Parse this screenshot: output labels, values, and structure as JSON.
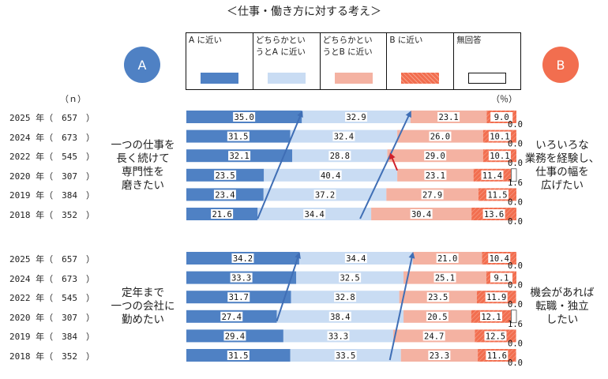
{
  "title": "＜仕事・働き方に対する考え＞",
  "circle_a": "A",
  "circle_b": "B",
  "unit_n": "（ｎ）",
  "unit_pct": "（％）",
  "legend": [
    {
      "label": "A に近い",
      "color": "#4f81c4",
      "style": "solid"
    },
    {
      "label": "どちらかとい\nうとA に近い",
      "color": "#c9dcf3",
      "style": "solid"
    },
    {
      "label": "どちらかとい\nうとB に近い",
      "color": "#f4b2a2",
      "style": "solid"
    },
    {
      "label": "B に近い",
      "color": "#f26e4f",
      "style": "hatched"
    },
    {
      "label": "無回答",
      "color": "#ffffff",
      "style": "empty"
    }
  ],
  "colors": {
    "a": "#4f81c4",
    "lean_a": "#c9dcf3",
    "lean_b": "#f4b2a2",
    "b": "#f26e4f",
    "arrow_blue": "#3f6eb5",
    "arrow_red": "#d0202a"
  },
  "chart_data": [
    {
      "type": "bar",
      "orientation": "horizontal-stacked-100",
      "left_statement": "一つの仕事を\n長く続けて\n専門性を\n磨きたい",
      "right_statement": "いろいろな\n業務を経験し、\n仕事の幅を\n広げたい",
      "categories": [
        "2025 年（　657　）",
        "2024 年（　673　）",
        "2022 年（　545　）",
        "2020 年（　307　）",
        "2019 年（　384　）",
        "2018 年（　352　）"
      ],
      "series": [
        {
          "name": "A に近い",
          "values": [
            35.0,
            31.5,
            32.1,
            23.5,
            23.4,
            21.6
          ]
        },
        {
          "name": "どちらかというとA に近い",
          "values": [
            32.9,
            32.4,
            28.8,
            40.4,
            37.2,
            34.4
          ]
        },
        {
          "name": "どちらかというとB に近い",
          "values": [
            23.1,
            26.0,
            29.0,
            23.1,
            27.9,
            30.4
          ]
        },
        {
          "name": "B に近い",
          "values": [
            9.0,
            10.1,
            10.1,
            11.4,
            11.5,
            13.6
          ]
        },
        {
          "name": "無回答",
          "values": [
            0.0,
            0.0,
            0.0,
            1.6,
            0.0,
            0.0
          ]
        }
      ],
      "value_labels": [
        [
          "35.0",
          "32.9",
          "23.1",
          "9.0",
          "0.0"
        ],
        [
          "31.5",
          "32.4",
          "26.0",
          "10.1",
          "0.0"
        ],
        [
          "32.1",
          "28.8",
          "29.0",
          "10.1",
          "0.0"
        ],
        [
          "23.5",
          "40.4",
          "23.1",
          "11.4",
          "1.6"
        ],
        [
          "23.4",
          "37.2",
          "27.9",
          "11.5",
          "0.0"
        ],
        [
          "21.6",
          "34.4",
          "30.4",
          "13.6",
          "0.0"
        ]
      ],
      "arrows": [
        {
          "color": "blue",
          "from_row": 5,
          "from_boundary": 1,
          "to_row": 0,
          "to_boundary": 1
        },
        {
          "color": "blue",
          "from_row": 5,
          "from_boundary": 2,
          "to_row": 0,
          "to_boundary": 2
        },
        {
          "color": "red",
          "from_row": 3,
          "from_boundary": 2,
          "to_row": 2,
          "to_boundary": 2
        }
      ]
    },
    {
      "type": "bar",
      "orientation": "horizontal-stacked-100",
      "left_statement": "定年まで\n一つの会社に\n勤めたい",
      "right_statement": "機会があれば\n転職・独立\nしたい",
      "categories": [
        "2025 年（　657　）",
        "2024 年（　673　）",
        "2022 年（　545　）",
        "2020 年（　307　）",
        "2019 年（　384　）",
        "2018 年（　352　）"
      ],
      "series": [
        {
          "name": "A に近い",
          "values": [
            34.2,
            33.3,
            31.7,
            27.4,
            29.4,
            31.5
          ]
        },
        {
          "name": "どちらかというとA に近い",
          "values": [
            34.4,
            32.5,
            32.8,
            38.4,
            33.3,
            33.5
          ]
        },
        {
          "name": "どちらかというとB に近い",
          "values": [
            21.0,
            25.1,
            23.5,
            20.5,
            24.7,
            23.3
          ]
        },
        {
          "name": "B に近い",
          "values": [
            10.4,
            9.1,
            11.9,
            12.1,
            12.5,
            11.6
          ]
        },
        {
          "name": "無回答",
          "values": [
            0.0,
            0.0,
            0.0,
            1.6,
            0.0,
            0.0
          ]
        }
      ],
      "value_labels": [
        [
          "34.2",
          "34.4",
          "21.0",
          "10.4",
          "0.0"
        ],
        [
          "33.3",
          "32.5",
          "25.1",
          "9.1",
          "0.0"
        ],
        [
          "31.7",
          "32.8",
          "23.5",
          "11.9",
          "0.0"
        ],
        [
          "27.4",
          "38.4",
          "20.5",
          "12.1",
          "1.6"
        ],
        [
          "29.4",
          "33.3",
          "24.7",
          "12.5",
          "0.0"
        ],
        [
          "31.5",
          "33.5",
          "23.3",
          "11.6",
          "0.0"
        ]
      ],
      "arrows": [
        {
          "color": "blue",
          "from_row": 3,
          "from_boundary": 1,
          "to_row": 0,
          "to_boundary": 1
        },
        {
          "color": "blue",
          "from_row": 5,
          "from_boundary": 2,
          "to_row": 0,
          "to_boundary": 2
        }
      ]
    }
  ]
}
